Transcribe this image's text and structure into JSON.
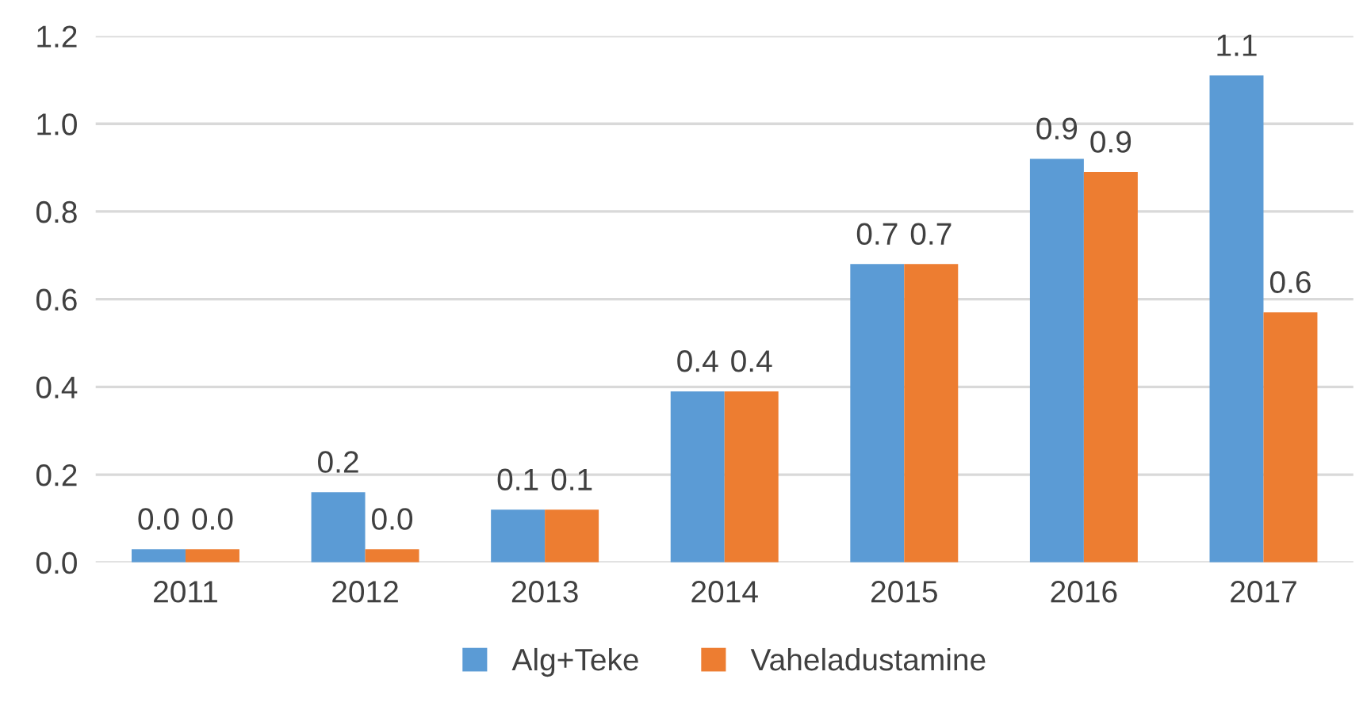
{
  "chart_data": {
    "type": "bar",
    "categories": [
      "2011",
      "2012",
      "2013",
      "2014",
      "2015",
      "2016",
      "2017"
    ],
    "series": [
      {
        "name": "Alg+Teke",
        "color": "#5b9bd5",
        "values": [
          0.03,
          0.16,
          0.12,
          0.39,
          0.68,
          0.92,
          1.11
        ],
        "value_labels": [
          "0.0",
          "0.2",
          "0.1",
          "0.4",
          "0.7",
          "0.9",
          "1.1"
        ]
      },
      {
        "name": "Vaheladustamine",
        "color": "#ed7d31",
        "values": [
          0.03,
          0.03,
          0.12,
          0.39,
          0.68,
          0.89,
          0.57
        ],
        "value_labels": [
          "0.0",
          "0.0",
          "0.1",
          "0.4",
          "0.7",
          "0.9",
          "0.6"
        ]
      }
    ],
    "ylim": [
      0,
      1.2
    ],
    "yticks": [
      {
        "value": 0,
        "label": "0.0"
      },
      {
        "value": 0.2,
        "label": "0.2"
      },
      {
        "value": 0.4,
        "label": "0.4"
      },
      {
        "value": 0.6,
        "label": "0.6"
      },
      {
        "value": 0.8,
        "label": "0.8"
      },
      {
        "value": 1.0,
        "label": "1.0"
      },
      {
        "value": 1.2,
        "label": "1.2"
      }
    ],
    "grid": "y",
    "legend": "bottom"
  }
}
